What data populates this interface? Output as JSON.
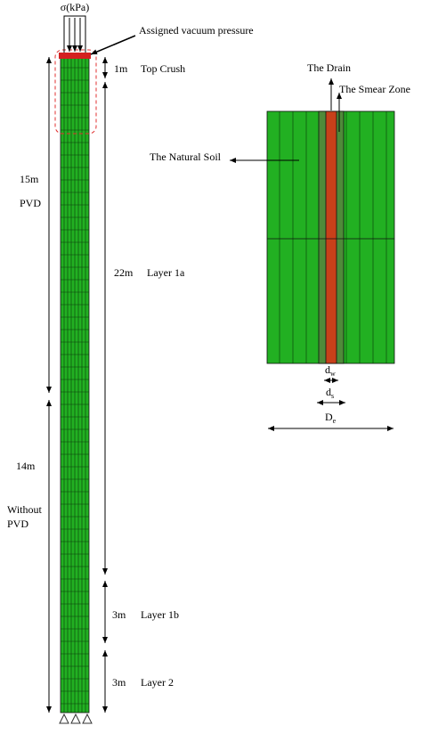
{
  "header": {
    "load": "σ(kPa)",
    "vacuum": "Assigned vacuum pressure"
  },
  "left_column": {
    "top_crush": {
      "thickness": "1m",
      "label": "Top Crush"
    },
    "pvd_zone": {
      "length": "15m",
      "label": "PVD"
    },
    "layer_1a": {
      "thickness": "22m",
      "label": "Layer 1a"
    },
    "no_pvd_zone": {
      "length": "14m",
      "label": [
        "Without",
        "PVD"
      ]
    },
    "layer_1b": {
      "thickness": "3m",
      "label": "Layer 1b"
    },
    "layer_2": {
      "thickness": "3m",
      "label": "Layer 2"
    }
  },
  "unit_cell": {
    "drain": "The Drain",
    "smear_zone": "The Smear Zone",
    "natural_soil": "The Natural Soil",
    "dimensions": {
      "dw": {
        "symbol": "d",
        "subscript": "w"
      },
      "ds": {
        "symbol": "d",
        "subscript": "s"
      },
      "de": {
        "symbol": "D",
        "subscript": "e"
      }
    }
  }
}
